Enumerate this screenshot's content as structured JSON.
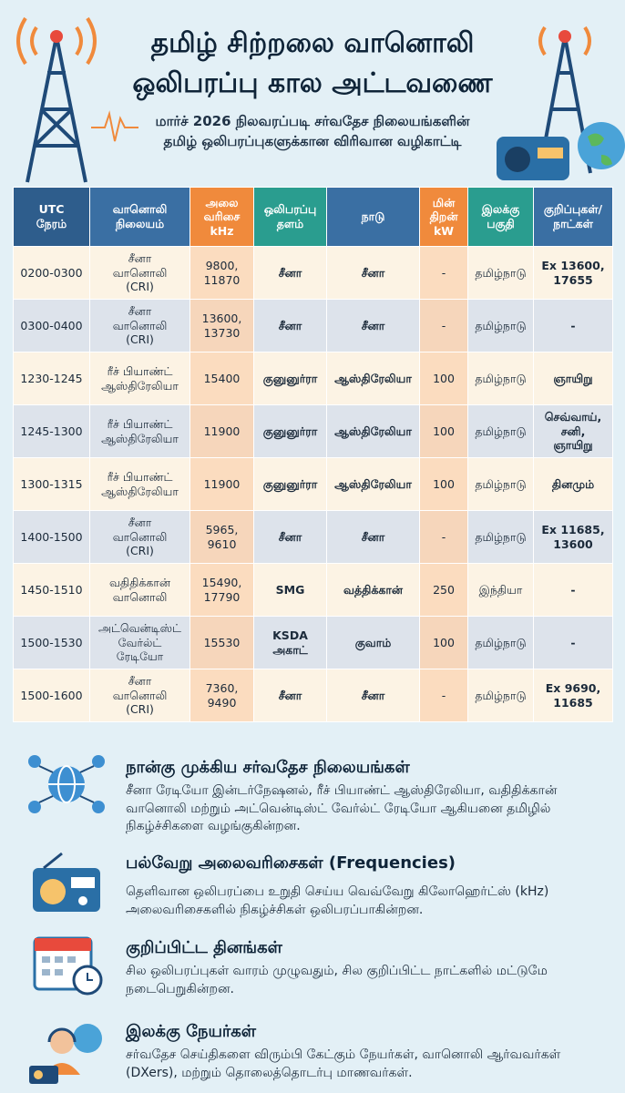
{
  "header": {
    "title_lines": [
      "தமிழ் சிற்றலை வானொலி",
      "ஒலிபரப்பு கால அட்டவணை"
    ],
    "subtitle_lines": [
      "மார்ச் 2026 நிலவரப்படி சர்வதேச நிலையங்களின்",
      "தமிழ் ஒலிபரப்புகளுக்கான விரிவான வழிகாட்டி"
    ]
  },
  "table": {
    "columns": [
      "UTC\nநேரம்",
      "வானொலி\nநிலையம்",
      "அலை\nவரிசை\nkHz",
      "ஒலிபரப்பு\nதளம்",
      "நாடு",
      "மின்\nதிறன்\nkW",
      "இலக்கு\nபகுதி",
      "குறிப்புகள்/\nநாட்கள்"
    ],
    "rows": [
      [
        "0200-0300",
        "சீனா\nவானொலி\n(CRI)",
        "9800,\n11870",
        "சீனா",
        "சீனா",
        "-",
        "தமிழ்நாடு",
        "Ex 13600,\n17655"
      ],
      [
        "0300-0400",
        "சீனா\nவானொலி\n(CRI)",
        "13600,\n13730",
        "சீனா",
        "சீனா",
        "-",
        "தமிழ்நாடு",
        "-"
      ],
      [
        "1230-1245",
        "ரீச் பியாண்ட்\nஆஸ்திரேலியா",
        "15400",
        "குனுனுர்ரா",
        "ஆஸ்திரேலியா",
        "100",
        "தமிழ்நாடு",
        "ஞாயிறு"
      ],
      [
        "1245-1300",
        "ரீச் பியாண்ட்\nஆஸ்திரேலியா",
        "11900",
        "குனுனுர்ரா",
        "ஆஸ்திரேலியா",
        "100",
        "தமிழ்நாடு",
        "செவ்வாய்,\nசனி,\nஞாயிறு"
      ],
      [
        "1300-1315",
        "ரீச் பியாண்ட்\nஆஸ்திரேலியா",
        "11900",
        "குனுனுர்ரா",
        "ஆஸ்திரேலியா",
        "100",
        "தமிழ்நாடு",
        "தினமும்"
      ],
      [
        "1400-1500",
        "சீனா\nவானொலி\n(CRI)",
        "5965,\n9610",
        "சீனா",
        "சீனா",
        "-",
        "தமிழ்நாடு",
        "Ex 11685,\n13600"
      ],
      [
        "1450-1510",
        "வதிதிக்கான்\nவானொலி",
        "15490,\n17790",
        "SMG",
        "வத்திக்கான்",
        "250",
        "இந்தியா",
        "-"
      ],
      [
        "1500-1530",
        "அட்வென்டிஸ்ட்\nவேர்ல்ட்\nரேடியோ",
        "15530",
        "KSDA\nஅகாட்",
        "குவாம்",
        "100",
        "தமிழ்நாடு",
        "-"
      ],
      [
        "1500-1600",
        "சீனா\nவானொலி\n(CRI)",
        "7360,\n9490",
        "சீனா",
        "சீனா",
        "-",
        "தமிழ்நாடு",
        "Ex 9690,\n11685"
      ]
    ]
  },
  "sections": [
    {
      "title": "நான்கு முக்கிய சர்வதேச நிலையங்கள்",
      "text": "சீனா ரேடியோ இன்டர்நேஷனல், ரீச் பியாண்ட் ஆஸ்திரேலியா, வதிதிக்கான் வானொலி மற்றும் அட்வென்டிஸ்ட் வேர்ல்ட் ரேடியோ ஆகியனை தமிழில் நிகழ்ச்சிகளை வழங்குகின்றன."
    },
    {
      "title": "பல்வேறு அலைவரிசைகள் (Frequencies)",
      "text": "தெளிவான ஒலிபரப்பை உறுதி செய்ய வெவ்வேறு கிலோஹெர்ட்ஸ் (kHz) அலைவரிசைகளில் நிகழ்ச்சிகள் ஒலிபரப்பாகின்றன."
    },
    {
      "title": "குறிப்பிட்ட தினங்கள்",
      "text": "சில ஒலிபரப்புகள் வாரம் முழுவதும், சில குறிப்பிட்ட நாட்களில் மட்டுமே நடைபெறுகின்றன."
    },
    {
      "title": "இலக்கு நேயர்கள்",
      "text": "சர்வதேச செய்திகளை விரும்பி கேட்கும் நேயர்கள், வானொலி ஆர்வவர்கள் (DXers), மற்றும் தொலைத்தொடர்பு மாணவர்கள்."
    }
  ]
}
